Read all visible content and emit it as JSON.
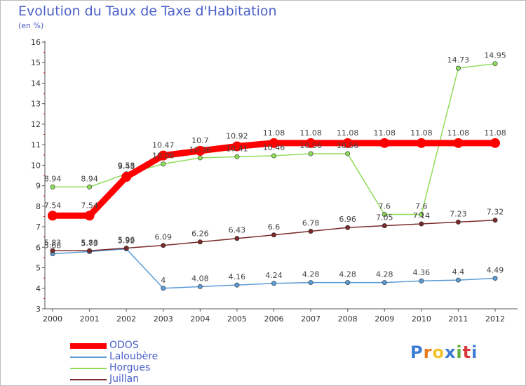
{
  "chart_data": {
    "type": "line",
    "title": "Evolution du Taux de Taxe d'Habitation",
    "subtitle": "(en %)",
    "x": [
      "2000",
      "2001",
      "2002",
      "2003",
      "2004",
      "2005",
      "2006",
      "2007",
      "2008",
      "2009",
      "2010",
      "2011",
      "2012"
    ],
    "ylim": [
      3,
      16
    ],
    "yticks": [
      3,
      4,
      5,
      6,
      7,
      8,
      9,
      10,
      11,
      12,
      13,
      14,
      15,
      16
    ],
    "grid": false,
    "legend_position": "bottom-left",
    "series": [
      {
        "name": "ODOS",
        "color": "#ff0000",
        "values": [
          7.54,
          7.54,
          9.43,
          10.47,
          10.7,
          10.92,
          11.08,
          11.08,
          11.08,
          11.08,
          11.08,
          11.08,
          11.08
        ],
        "labels": [
          "7.54",
          "7.54",
          "9.43",
          "10.47",
          "10.7",
          "10.92",
          "11.08",
          "11.08",
          "11.08",
          "11.08",
          "11.08",
          "11.08",
          "11.08"
        ]
      },
      {
        "name": "Laloubère",
        "color": "#5b9bd5",
        "values": [
          5.68,
          5.79,
          5.92,
          4,
          4.08,
          4.16,
          4.24,
          4.28,
          4.28,
          4.28,
          4.36,
          4.4,
          4.49
        ],
        "labels": [
          "5.68",
          "5.79",
          "5.92",
          "4",
          "4.08",
          "4.16",
          "4.24",
          "4.28",
          "4.28",
          "4.28",
          "4.36",
          "4.4",
          "4.49"
        ]
      },
      {
        "name": "Horgues",
        "color": "#8fdc5a",
        "values": [
          8.94,
          8.94,
          9.58,
          10.06,
          10.36,
          10.41,
          10.46,
          10.56,
          10.56,
          7.6,
          7.6,
          14.73,
          14.95
        ],
        "labels": [
          "8.94",
          "8.94",
          "9.58",
          "10.06",
          "10.36",
          "10.41",
          "10.46",
          "10.56",
          "10.56",
          "7.6",
          "7.6",
          "14.73",
          "14.95"
        ]
      },
      {
        "name": "Juillan",
        "color": "#7a2a2a",
        "values": [
          5.83,
          5.83,
          5.96,
          6.09,
          6.26,
          6.43,
          6.6,
          6.78,
          6.96,
          7.05,
          7.14,
          7.23,
          7.32
        ],
        "labels": [
          "5.83",
          "5.83",
          "5.96",
          "6.09",
          "6.26",
          "6.43",
          "6.6",
          "6.78",
          "6.96",
          "7.05",
          "7.14",
          "7.23",
          "7.32"
        ]
      }
    ]
  },
  "logo": {
    "text": "Proxiti",
    "colors": [
      "#3b7bd4",
      "#e67c1c",
      "#f2c230",
      "#3b7bd4",
      "#5fae3a",
      "#d63a3a",
      "#3b7bd4"
    ]
  }
}
